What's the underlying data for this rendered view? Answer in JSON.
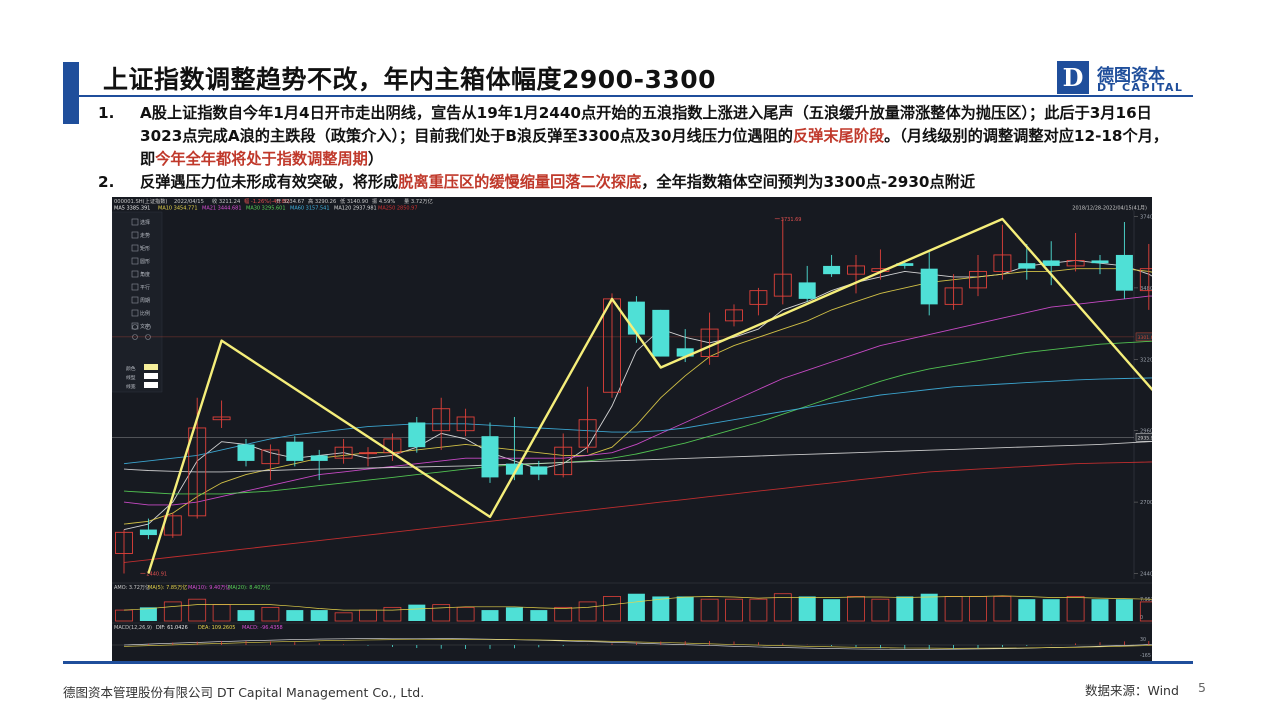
{
  "title": "上证指数调整趋势不改，年内主箱体幅度2900-3300",
  "logo": {
    "mark": "D",
    "cn": "德图资本",
    "en": "DT CAPITAL"
  },
  "bullets": [
    {
      "num": "1.",
      "parts": [
        {
          "t": "A股上证指数自今年1月4日开市走出阴线，宣告从19年1月2440点开始的五浪指数上涨进入尾声（五浪缓升放量滞涨整体为抛压区）；此后于3月16日3023点完成A浪的主跌段（政策介入）；目前我们处于B浪反弹至3300点及30月线压力位遇阻的",
          "red": false
        },
        {
          "t": "反弹末尾阶段",
          "red": true
        },
        {
          "t": "。（月线级别的调整调整对应12-18个月，即",
          "red": false
        },
        {
          "t": "今年全年都将处于指数调整周期",
          "red": true
        },
        {
          "t": "）",
          "red": false
        }
      ]
    },
    {
      "num": "2.",
      "parts": [
        {
          "t": "反弹遇压力位未形成有效突破，将形成",
          "red": false
        },
        {
          "t": "脱离重压区的缓慢缩量回落二次探底",
          "red": true
        },
        {
          "t": "，全年指数箱体空间预判为3300点-2930点附近",
          "red": false
        }
      ]
    }
  ],
  "chart_data": {
    "type": "candlestick",
    "header": {
      "code": "000001.SH(上证指数)",
      "date": "2022/04/15",
      "info": [
        "收 3211.24",
        "幅 -1.26%(-40.86)",
        "开 3234.67",
        "高 3290.26",
        "低 3140.90",
        "振 4.59%",
        "量 3.72万亿"
      ],
      "ma_labels": [
        {
          "name": "MA5 3385.391",
          "color": "#e8e8e8"
        },
        {
          "name": "MA10 3454.771",
          "color": "#e6d34a"
        },
        {
          "name": "MA21 3444.681",
          "color": "#d94fd6"
        },
        {
          "name": "MA30 3295.601",
          "color": "#58d457"
        },
        {
          "name": "MA60 3157.541",
          "color": "#3fb3e0"
        },
        {
          "name": "MA120 2937.981",
          "color": "#d9d9d9"
        },
        {
          "name": "MA250 2850.97",
          "color": "#d03030"
        }
      ],
      "range": "2018/12/28-2022/04/15(41月)"
    },
    "y_ticks": [
      3740,
      3480,
      3220,
      2960,
      2700,
      2440
    ],
    "y_range": [
      2420,
      3760
    ],
    "price_tags": [
      {
        "value": 3301.6,
        "label": "3301.60",
        "color": "#c94a3a"
      },
      {
        "value": 2935.97,
        "label": "2935.97",
        "color": "#d9d9d9"
      }
    ],
    "annotations": [
      {
        "label": "3731.69",
        "value": 3731.69,
        "index": 27
      },
      {
        "label": "2440.91",
        "value": 2440.91,
        "index": 1
      }
    ],
    "candles": [
      [
        2513,
        2590,
        2440,
        2600
      ],
      [
        2600,
        2580,
        2565,
        2640
      ],
      [
        2580,
        2650,
        2570,
        2660
      ],
      [
        2650,
        2970,
        2640,
        3080
      ],
      [
        3000,
        3010,
        2970,
        3070
      ],
      [
        2910,
        2850,
        2830,
        2930
      ],
      [
        2840,
        2890,
        2780,
        2910
      ],
      [
        2920,
        2850,
        2830,
        2940
      ],
      [
        2870,
        2850,
        2780,
        2890
      ],
      [
        2860,
        2900,
        2840,
        2930
      ],
      [
        2880,
        2880,
        2830,
        2900
      ],
      [
        2880,
        2930,
        2850,
        2950
      ],
      [
        2990,
        2900,
        2880,
        3010
      ],
      [
        2960,
        3040,
        2890,
        3080
      ],
      [
        2960,
        3010,
        2940,
        3040
      ],
      [
        2940,
        2790,
        2770,
        2990
      ],
      [
        2840,
        2800,
        2780,
        3010
      ],
      [
        2830,
        2800,
        2780,
        2850
      ],
      [
        2800,
        2900,
        2790,
        2950
      ],
      [
        2900,
        3000,
        2880,
        3120
      ],
      [
        3100,
        3440,
        3080,
        3460
      ],
      [
        3430,
        3310,
        3280,
        3450
      ],
      [
        3400,
        3230,
        3230,
        3400
      ],
      [
        3260,
        3230,
        3210,
        3330
      ],
      [
        3230,
        3330,
        3200,
        3390
      ],
      [
        3360,
        3400,
        3340,
        3420
      ],
      [
        3420,
        3470,
        3380,
        3480
      ],
      [
        3450,
        3530,
        3420,
        3730
      ],
      [
        3500,
        3440,
        3430,
        3560
      ],
      [
        3560,
        3530,
        3520,
        3600
      ],
      [
        3530,
        3560,
        3460,
        3600
      ],
      [
        3540,
        3550,
        3510,
        3620
      ],
      [
        3570,
        3560,
        3550,
        3580
      ],
      [
        3550,
        3420,
        3380,
        3610
      ],
      [
        3420,
        3480,
        3400,
        3530
      ],
      [
        3480,
        3540,
        3450,
        3600
      ],
      [
        3540,
        3600,
        3510,
        3710
      ],
      [
        3570,
        3550,
        3510,
        3640
      ],
      [
        3580,
        3560,
        3490,
        3650
      ],
      [
        3560,
        3580,
        3540,
        3680
      ],
      [
        3580,
        3570,
        3530,
        3600
      ],
      [
        3600,
        3470,
        3440,
        3720
      ],
      [
        3470,
        3550,
        3400,
        3640
      ],
      [
        3640,
        3360,
        3350,
        3650
      ],
      [
        3460,
        3240,
        3180,
        3550
      ],
      [
        3240,
        3210,
        3140,
        3290
      ]
    ],
    "ma_lines": [
      {
        "name": "MA5",
        "color": "#e8e8e8",
        "values": [
          2600,
          2620,
          2700,
          2850,
          2920,
          2910,
          2880,
          2860,
          2870,
          2880,
          2860,
          2870,
          2900,
          2950,
          2930,
          2880,
          2850,
          2820,
          2840,
          2900,
          3050,
          3250,
          3330,
          3300,
          3280,
          3300,
          3330,
          3400,
          3430,
          3470,
          3500,
          3520,
          3540,
          3530,
          3520,
          3520,
          3530,
          3560,
          3570,
          3580,
          3570,
          3560,
          3530,
          3480,
          3400,
          3385
        ]
      },
      {
        "name": "MA10",
        "color": "#e6d34a",
        "values": [
          2620,
          2630,
          2660,
          2720,
          2770,
          2800,
          2820,
          2840,
          2860,
          2870,
          2880,
          2880,
          2890,
          2900,
          2910,
          2900,
          2890,
          2880,
          2870,
          2870,
          2900,
          2980,
          3080,
          3160,
          3230,
          3270,
          3300,
          3330,
          3360,
          3400,
          3430,
          3460,
          3480,
          3500,
          3510,
          3520,
          3530,
          3540,
          3540,
          3550,
          3550,
          3550,
          3540,
          3520,
          3490,
          3455
        ]
      },
      {
        "name": "MA21",
        "color": "#d94fd6",
        "values": [
          2700,
          2690,
          2690,
          2700,
          2720,
          2740,
          2760,
          2780,
          2800,
          2810,
          2820,
          2830,
          2840,
          2850,
          2860,
          2860,
          2860,
          2860,
          2860,
          2870,
          2880,
          2910,
          2950,
          2990,
          3030,
          3070,
          3110,
          3150,
          3180,
          3210,
          3240,
          3270,
          3290,
          3310,
          3330,
          3350,
          3370,
          3390,
          3410,
          3420,
          3430,
          3440,
          3450,
          3450,
          3450,
          3445
        ]
      },
      {
        "name": "MA30",
        "color": "#58d457",
        "values": [
          2740,
          2735,
          2730,
          2730,
          2730,
          2735,
          2740,
          2750,
          2760,
          2770,
          2780,
          2790,
          2800,
          2810,
          2820,
          2830,
          2835,
          2840,
          2845,
          2850,
          2860,
          2875,
          2895,
          2915,
          2940,
          2965,
          2990,
          3020,
          3050,
          3080,
          3110,
          3140,
          3165,
          3185,
          3200,
          3215,
          3230,
          3245,
          3255,
          3265,
          3275,
          3280,
          3285,
          3290,
          3295,
          3296
        ]
      },
      {
        "name": "MA60",
        "color": "#3fb3e0",
        "values": [
          2840,
          2850,
          2860,
          2870,
          2890,
          2910,
          2930,
          2945,
          2955,
          2965,
          2975,
          2980,
          2985,
          2985,
          2985,
          2980,
          2975,
          2970,
          2965,
          2960,
          2955,
          2955,
          2960,
          2970,
          2985,
          3000,
          3015,
          3030,
          3045,
          3060,
          3075,
          3090,
          3100,
          3110,
          3120,
          3125,
          3130,
          3135,
          3140,
          3145,
          3148,
          3150,
          3152,
          3154,
          3156,
          3157
        ]
      },
      {
        "name": "MA120",
        "color": "#d9d9d9",
        "values": [
          2820,
          2815,
          2812,
          2810,
          2810,
          2812,
          2815,
          2818,
          2820,
          2822,
          2824,
          2826,
          2828,
          2830,
          2832,
          2835,
          2838,
          2841,
          2844,
          2847,
          2850,
          2853,
          2856,
          2859,
          2862,
          2865,
          2868,
          2871,
          2874,
          2877,
          2880,
          2883,
          2886,
          2889,
          2892,
          2895,
          2898,
          2901,
          2904,
          2907,
          2910,
          2915,
          2920,
          2925,
          2932,
          2938
        ]
      },
      {
        "name": "MA250",
        "color": "#d03030",
        "values": [
          2480,
          2490,
          2500,
          2510,
          2520,
          2530,
          2540,
          2550,
          2560,
          2570,
          2580,
          2590,
          2600,
          2610,
          2620,
          2630,
          2640,
          2650,
          2660,
          2670,
          2680,
          2690,
          2700,
          2710,
          2720,
          2730,
          2740,
          2750,
          2760,
          2770,
          2780,
          2790,
          2800,
          2810,
          2815,
          2820,
          2825,
          2830,
          2835,
          2840,
          2842,
          2844,
          2846,
          2848,
          2850,
          2851
        ]
      }
    ],
    "wave_points": [
      {
        "index": 1,
        "value": 2440
      },
      {
        "index": 4,
        "value": 3288
      },
      {
        "index": 15,
        "value": 2646
      },
      {
        "index": 20,
        "value": 3440
      },
      {
        "index": 22,
        "value": 3190
      },
      {
        "index": 36,
        "value": 3731
      },
      {
        "index": 43,
        "value": 3023
      },
      {
        "index": 45,
        "value": 3300
      }
    ],
    "volume": {
      "label": "AMO: 3.72万亿",
      "ma_labels": [
        "MA(5): 7.85万亿",
        "MA(10): 9.40万亿",
        "MA(20): 8.40万亿"
      ],
      "y_ticks": [
        "7.95万亿",
        "0"
      ],
      "values": [
        4,
        5,
        7,
        8,
        6,
        4,
        5,
        4,
        4,
        3,
        4,
        5,
        6,
        6,
        5,
        4,
        5,
        4,
        5,
        7,
        9,
        10,
        9,
        9,
        8,
        8,
        8,
        10,
        9,
        8,
        9,
        8,
        9,
        10,
        9,
        9,
        9,
        8,
        8,
        9,
        8,
        8,
        7,
        7,
        8,
        3.72
      ]
    },
    "macd": {
      "label": "MACD(12,26,9)",
      "dif": "DIF: 61.0426",
      "dea": "DEA: 109.2605",
      "macd": "MACD: -96.4358",
      "y_ticks": [
        "30",
        "-165"
      ]
    }
  },
  "toolbar": [
    "选择",
    "走势",
    "矩形",
    "圆形",
    "角度",
    "平行",
    "周期",
    "比例",
    "文字"
  ],
  "toolbar_bottom": [
    "颜色",
    "线型",
    "线宽"
  ],
  "footer": {
    "company": "德图资本管理股份有限公司  DT Capital Management Co., Ltd.",
    "source": "数据来源：Wind",
    "page": "5"
  }
}
